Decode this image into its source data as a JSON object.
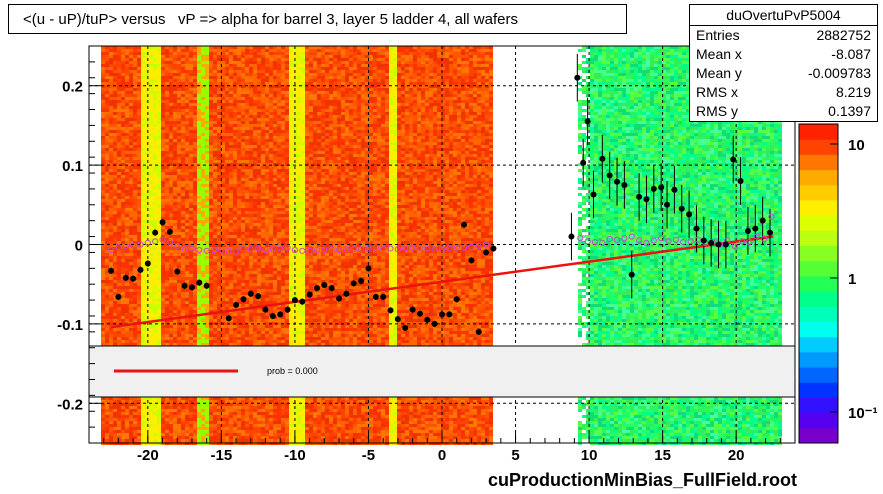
{
  "title": "<(u - uP)/tuP> versus   vP => alpha for barrel 3, layer 5 ladder 4, all wafers",
  "stats": {
    "name": "duOvertuPvP5004",
    "rows": [
      {
        "label": "Entries",
        "value": "2882752"
      },
      {
        "label": "Mean x",
        "value": "-8.087"
      },
      {
        "label": "Mean y",
        "value": "-0.009783"
      },
      {
        "label": "RMS x",
        "value": "8.219"
      },
      {
        "label": "RMS y",
        "value": "0.1397"
      }
    ]
  },
  "fit_legend": {
    "label": "prob = 0.000",
    "line_color": "#ee1111"
  },
  "footer": "cuProductionMinBias_FullField.root",
  "colors": {
    "profile_markers": "#000000",
    "open_markers": "#cc44cc",
    "fit_line": "#ee1111"
  },
  "chart_data": {
    "type": "scatter",
    "title": "<(u - uP)/tuP> versus   vP => alpha for barrel 3, layer 5 ladder 4, all wafers",
    "xlabel": "",
    "ylabel": "",
    "xlim": [
      -24,
      24
    ],
    "ylim": [
      -0.25,
      0.25
    ],
    "x_ticks": [
      "-20",
      "-15",
      "-10",
      "-5",
      "0",
      "5",
      "10",
      "15",
      "20"
    ],
    "y_ticks": [
      "0.2",
      "0.1",
      "0",
      "-0.1",
      "-0.2"
    ],
    "grid": true,
    "colorbar": {
      "scale": "log",
      "tick_labels": [
        "10",
        "1",
        "10⁻¹"
      ]
    },
    "series": [
      {
        "marker": "filled-circle",
        "x": [
          -22.5,
          -22.0,
          -21.5,
          -21.0,
          -20.5,
          -20.0,
          -19.5,
          -19.0,
          -18.5,
          -18.0,
          -17.5,
          -17.0,
          -16.5,
          -16.0,
          -14.5,
          -14.0,
          -13.5,
          -13.0,
          -12.5,
          -12.0,
          -11.5,
          -11.0,
          -10.5,
          -10.0,
          -9.5,
          -9.0,
          -8.5,
          -8.0,
          -7.5,
          -7.0,
          -6.5,
          -6.0,
          -5.5,
          -5.0,
          -4.5,
          -4.0,
          -3.5,
          -3.0,
          -2.5,
          -2.0,
          -1.5,
          -1.0,
          -0.5,
          0.0,
          0.5,
          1.0,
          1.5,
          2.0,
          2.5,
          3.0,
          3.5,
          8.8,
          9.2,
          9.6,
          9.9,
          10.3,
          10.9,
          11.4,
          11.9,
          12.4,
          12.9,
          13.4,
          13.9,
          14.4,
          14.9,
          15.3,
          15.8,
          16.3,
          16.8,
          17.3,
          17.8,
          18.3,
          18.8,
          19.3,
          19.8,
          20.3,
          20.8,
          21.3,
          21.8,
          22.3
        ],
        "y": [
          -0.033,
          -0.066,
          -0.042,
          -0.043,
          -0.032,
          -0.024,
          0.015,
          0.028,
          0.016,
          -0.034,
          -0.052,
          -0.054,
          -0.048,
          -0.052,
          -0.093,
          -0.076,
          -0.069,
          -0.062,
          -0.065,
          -0.082,
          -0.09,
          -0.088,
          -0.082,
          -0.07,
          -0.072,
          -0.063,
          -0.055,
          -0.051,
          -0.055,
          -0.068,
          -0.062,
          -0.049,
          -0.046,
          -0.03,
          -0.066,
          -0.066,
          -0.083,
          -0.094,
          -0.105,
          -0.082,
          -0.087,
          -0.095,
          -0.1,
          -0.088,
          -0.088,
          -0.069,
          0.025,
          -0.02,
          -0.11,
          -0.01,
          -0.005,
          0.01,
          0.21,
          0.103,
          0.155,
          0.063,
          0.108,
          0.087,
          0.079,
          0.075,
          -0.038,
          0.06,
          0.057,
          0.07,
          0.072,
          0.05,
          0.069,
          0.045,
          0.038,
          0.02,
          0.005,
          0.002,
          0.0,
          0.0,
          0.107,
          0.08,
          0.017,
          0.02,
          0.03,
          0.015
        ]
      },
      {
        "marker": "open-circle",
        "x": [
          -22.5,
          -22.0,
          -21.5,
          -21.0,
          -20.5,
          -20.0,
          -19.5,
          -19.0,
          -18.5,
          -18.0,
          -17.5,
          -17.0,
          -16.5,
          -16.0,
          -15.5,
          -15.0,
          -14.5,
          -14.0,
          -13.5,
          -13.0,
          -12.5,
          -12.0,
          -11.5,
          -11.0,
          -10.5,
          -10.0,
          -9.5,
          -9.0,
          -8.5,
          -8.0,
          -7.5,
          -7.0,
          -6.5,
          -6.0,
          -5.5,
          -5.0,
          -4.5,
          -4.0,
          -3.5,
          -3.0,
          -2.5,
          -2.0,
          -1.5,
          -1.0,
          -0.5,
          0.0,
          0.5,
          1.0,
          1.5,
          2.0,
          2.5,
          3.0,
          9.4,
          9.9,
          10.4,
          10.9,
          11.4,
          11.9,
          12.4,
          12.9,
          13.4,
          13.9,
          14.4,
          14.9,
          15.4,
          15.9,
          16.4,
          16.9,
          17.4,
          17.9,
          18.4,
          18.9,
          19.4,
          19.9,
          20.4,
          20.9,
          21.4,
          21.9,
          22.4
        ],
        "y": [
          -0.007,
          -0.003,
          -0.002,
          -0.001,
          0.0,
          0.002,
          0.004,
          0.006,
          0.003,
          -0.002,
          -0.006,
          -0.005,
          -0.007,
          -0.008,
          -0.007,
          -0.007,
          -0.008,
          -0.009,
          -0.006,
          -0.006,
          -0.005,
          -0.007,
          -0.006,
          -0.005,
          -0.004,
          -0.007,
          -0.008,
          -0.008,
          -0.007,
          -0.007,
          -0.006,
          -0.007,
          -0.006,
          -0.006,
          -0.006,
          -0.005,
          -0.004,
          -0.006,
          -0.005,
          -0.006,
          -0.005,
          -0.004,
          -0.004,
          -0.005,
          -0.006,
          -0.006,
          -0.005,
          -0.004,
          -0.004,
          -0.003,
          -0.002,
          0.0,
          0.008,
          0.004,
          0.003,
          0.002,
          0.007,
          0.006,
          0.008,
          0.01,
          0.005,
          0.002,
          0.005,
          0.008,
          0.004,
          0.006,
          0.003,
          0.004,
          0.006,
          0.002,
          0.003,
          0.0,
          0.005,
          -0.002,
          0.004,
          0.003,
          0.01,
          0.007,
          0.035
        ]
      }
    ],
    "fit_line": {
      "x": [
        -22.5,
        22.5
      ],
      "y": [
        -0.104,
        0.01
      ]
    }
  }
}
